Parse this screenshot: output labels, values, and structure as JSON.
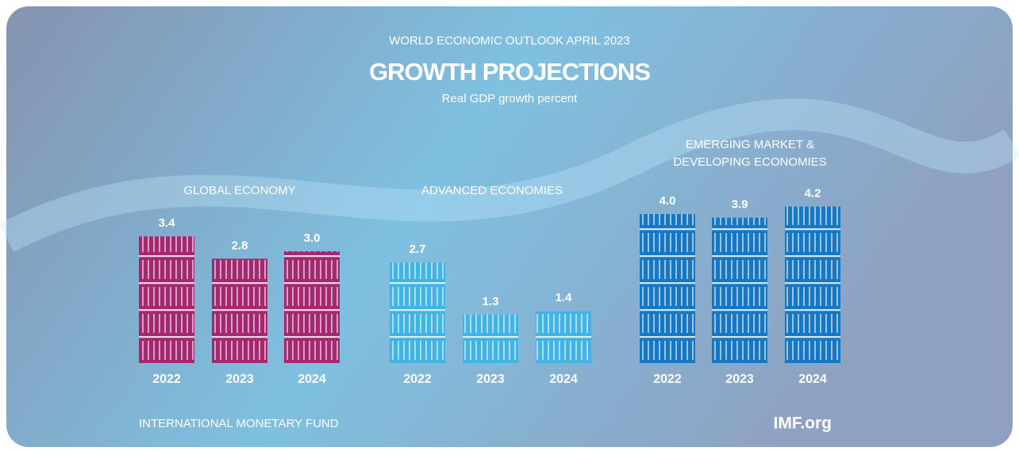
{
  "header": {
    "supertitle": "WORLD ECONOMIC OUTLOOK APRIL 2023",
    "title": "GROWTH PROJECTIONS",
    "subtitle": "Real GDP growth percent"
  },
  "chart_data": [
    {
      "type": "bar",
      "title": "GLOBAL ECONOMY",
      "categories": [
        "2022",
        "2023",
        "2024"
      ],
      "values": [
        3.4,
        2.8,
        3.0
      ],
      "value_labels": [
        "3.4",
        "2.8",
        "3.0"
      ],
      "color": "#a3286f"
    },
    {
      "type": "bar",
      "title": "ADVANCED ECONOMIES",
      "categories": [
        "2022",
        "2023",
        "2024"
      ],
      "values": [
        2.7,
        1.3,
        1.4
      ],
      "color": "#41b3e6"
    },
    {
      "type": "bar",
      "title": "EMERGING MARKET & DEVELOPING ECONOMIES",
      "categories": [
        "2022",
        "2023",
        "2024"
      ],
      "values": [
        4.0,
        3.9,
        4.2
      ],
      "value_labels": [
        "4.0",
        "3.9",
        "4.2"
      ],
      "color": "#1677c5"
    }
  ],
  "footer": {
    "source": "INTERNATIONAL MONETARY FUND",
    "site": "IMF.org"
  }
}
